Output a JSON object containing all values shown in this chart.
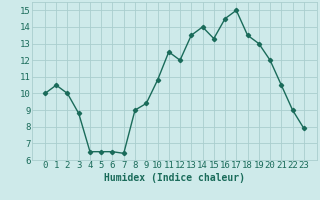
{
  "x": [
    0,
    1,
    2,
    3,
    4,
    5,
    6,
    7,
    8,
    9,
    10,
    11,
    12,
    13,
    14,
    15,
    16,
    17,
    18,
    19,
    20,
    21,
    22,
    23
  ],
  "y": [
    10.0,
    10.5,
    10.0,
    8.8,
    6.5,
    6.5,
    6.5,
    6.4,
    9.0,
    9.4,
    10.8,
    12.5,
    12.0,
    13.5,
    14.0,
    13.3,
    14.5,
    15.0,
    13.5,
    13.0,
    12.0,
    10.5,
    9.0,
    7.9
  ],
  "line_color": "#1a6b5a",
  "marker": "D",
  "marker_size": 2.2,
  "linewidth": 1.0,
  "bg_color": "#ceeaea",
  "grid_color": "#aacece",
  "xlabel": "Humidex (Indice chaleur)",
  "ylim": [
    6,
    15.5
  ],
  "yticks": [
    6,
    7,
    8,
    9,
    10,
    11,
    12,
    13,
    14,
    15
  ],
  "xticks": [
    0,
    1,
    2,
    3,
    4,
    5,
    6,
    7,
    8,
    9,
    10,
    11,
    12,
    13,
    14,
    15,
    16,
    17,
    18,
    19,
    20,
    21,
    22,
    23
  ],
  "xlabel_fontsize": 7.0,
  "tick_fontsize": 6.5
}
